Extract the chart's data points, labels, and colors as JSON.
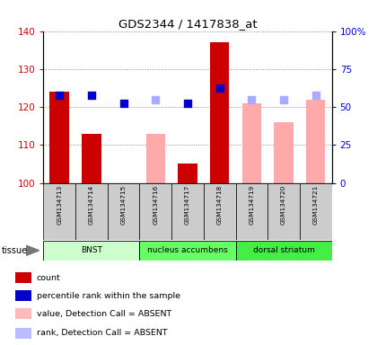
{
  "title": "GDS2344 / 1417838_at",
  "samples": [
    "GSM134713",
    "GSM134714",
    "GSM134715",
    "GSM134716",
    "GSM134717",
    "GSM134718",
    "GSM134719",
    "GSM134720",
    "GSM134721"
  ],
  "bar_values": [
    124,
    113,
    null,
    null,
    105,
    137,
    null,
    null,
    null
  ],
  "bar_colors_present": "#cc0000",
  "bar_colors_absent": "#ffaaaa",
  "absent_bar_values": [
    null,
    null,
    null,
    113,
    null,
    null,
    121,
    116,
    122
  ],
  "dot_present_y": [
    123,
    123,
    121,
    null,
    121,
    125,
    null,
    null,
    null
  ],
  "dot_present_color": "#0000cc",
  "dot_absent_y": [
    null,
    null,
    null,
    122,
    null,
    null,
    122,
    122,
    123
  ],
  "dot_absent_color": "#aaaaff",
  "ylim": [
    100,
    140
  ],
  "yticks_left": [
    100,
    110,
    120,
    130,
    140
  ],
  "ytick_labels_right": [
    "0",
    "25",
    "50",
    "75",
    "100%"
  ],
  "yticks_right_vals": [
    100,
    110,
    120,
    130,
    140
  ],
  "tissues": [
    {
      "label": "BNST",
      "start": 0,
      "end": 3,
      "color": "#ccffcc"
    },
    {
      "label": "nucleus accumbens",
      "start": 3,
      "end": 6,
      "color": "#66ff66"
    },
    {
      "label": "dorsal striatum",
      "start": 6,
      "end": 9,
      "color": "#44ee44"
    }
  ],
  "tissue_label": "tissue",
  "legend_items": [
    {
      "color": "#cc0000",
      "label": "count"
    },
    {
      "color": "#0000cc",
      "label": "percentile rank within the sample"
    },
    {
      "color": "#ffbbbb",
      "label": "value, Detection Call = ABSENT"
    },
    {
      "color": "#bbbbff",
      "label": "rank, Detection Call = ABSENT"
    }
  ],
  "bar_width": 0.6,
  "dot_size": 30,
  "left_axis_color": "#cc0000",
  "right_axis_color": "#0000cc",
  "grid_color": "#888888",
  "sample_box_color": "#cccccc",
  "plot_bg_color": "#ffffff"
}
